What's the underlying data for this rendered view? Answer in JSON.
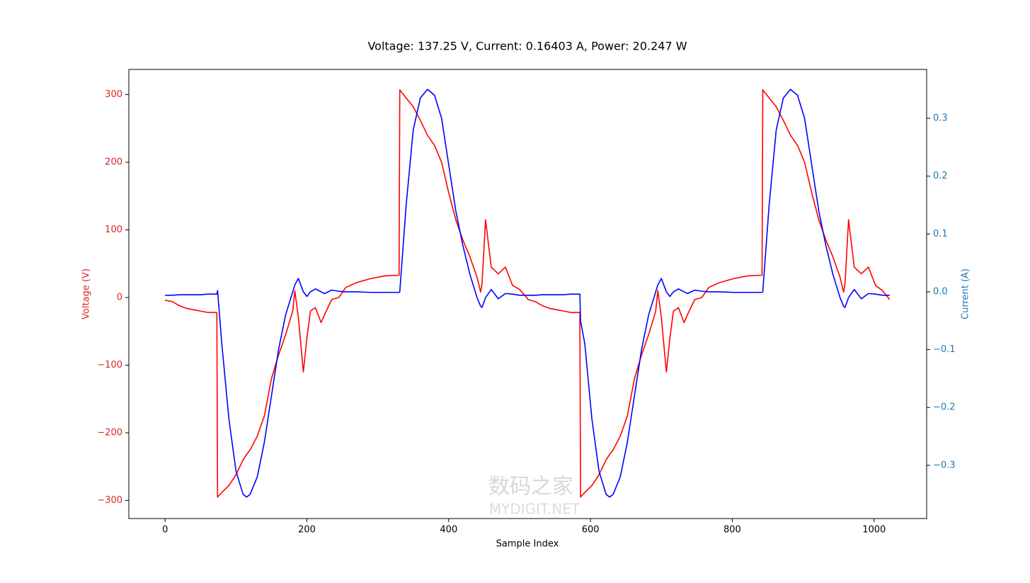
{
  "chart_data": {
    "type": "line",
    "title": "Voltage: 137.25 V, Current: 0.16403 A, Power: 20.247 W",
    "xlabel": "Sample Index",
    "ylabel": "Voltage (V)",
    "y2label": "Current (A)",
    "ylabel_color": "#d62728",
    "y2label_color": "#1f77b4",
    "watermark": [
      "数码之家",
      "MYDIGIT.NET"
    ],
    "x": [
      0,
      10,
      20,
      30,
      40,
      50,
      60,
      73,
      74,
      80,
      90,
      100,
      110,
      115,
      120,
      130,
      140,
      150,
      160,
      170,
      180,
      183,
      188,
      195,
      200,
      205,
      212,
      220,
      225,
      235,
      245,
      255,
      270,
      290,
      310,
      330,
      331,
      340,
      350,
      360,
      370,
      380,
      390,
      400,
      410,
      420,
      430,
      440,
      445,
      447,
      452,
      460,
      470,
      480,
      490,
      500,
      510,
      512,
      522,
      532,
      542,
      552,
      562,
      572,
      585,
      586,
      592,
      602,
      612,
      622,
      627,
      632,
      642,
      652,
      662,
      672,
      682,
      692,
      695,
      700,
      707,
      712,
      717,
      724,
      732,
      737,
      747,
      757,
      767,
      782,
      802,
      822,
      842,
      843,
      852,
      862,
      872,
      882,
      892,
      902,
      912,
      922,
      932,
      942,
      952,
      957,
      959,
      964,
      972,
      982,
      992,
      1002,
      1012,
      1022
    ],
    "series": [
      {
        "name": "Voltage (V)",
        "color": "#ff0000",
        "axis": "y",
        "values": [
          -4,
          -6,
          -12,
          -16,
          -18,
          -20,
          -22,
          -22,
          -295,
          -288,
          -278,
          -262,
          -240,
          -232,
          -225,
          -205,
          -175,
          -120,
          -85,
          -55,
          -20,
          10,
          -30,
          -110,
          -60,
          -20,
          -15,
          -37,
          -25,
          -3,
          0,
          15,
          22,
          28,
          32,
          33,
          307,
          295,
          282,
          262,
          240,
          225,
          200,
          155,
          115,
          85,
          60,
          30,
          8,
          20,
          115,
          45,
          35,
          45,
          18,
          12,
          0,
          -3,
          -6,
          -12,
          -16,
          -18,
          -20,
          -22,
          -22,
          -295,
          -288,
          -278,
          -262,
          -240,
          -232,
          -225,
          -205,
          -175,
          -120,
          -85,
          -55,
          -20,
          10,
          -30,
          -110,
          -60,
          -20,
          -15,
          -37,
          -25,
          -3,
          0,
          15,
          22,
          28,
          32,
          33,
          307,
          295,
          282,
          262,
          240,
          225,
          200,
          155,
          115,
          85,
          60,
          30,
          8,
          20,
          115,
          45,
          35,
          45,
          18,
          10,
          -3
        ]
      },
      {
        "name": "Current (A)",
        "color": "#0000ff",
        "axis": "y2",
        "values": [
          -0.006,
          -0.006,
          -0.005,
          -0.005,
          -0.005,
          -0.005,
          -0.004,
          -0.004,
          0.002,
          -0.09,
          -0.22,
          -0.31,
          -0.35,
          -0.355,
          -0.35,
          -0.32,
          -0.26,
          -0.18,
          -0.1,
          -0.04,
          0.0,
          0.012,
          0.023,
          0.0,
          -0.008,
          0.0,
          0.005,
          0.0,
          -0.003,
          0.003,
          0.001,
          0.0,
          0.0,
          -0.001,
          -0.001,
          -0.001,
          0.0,
          0.15,
          0.28,
          0.335,
          0.35,
          0.34,
          0.3,
          0.22,
          0.14,
          0.08,
          0.03,
          -0.01,
          -0.025,
          -0.027,
          -0.01,
          0.004,
          -0.012,
          -0.003,
          -0.004,
          -0.006,
          -0.006,
          -0.006,
          -0.006,
          -0.005,
          -0.005,
          -0.005,
          -0.005,
          -0.004,
          -0.004,
          -0.05,
          -0.09,
          -0.22,
          -0.31,
          -0.35,
          -0.355,
          -0.35,
          -0.32,
          -0.26,
          -0.18,
          -0.1,
          -0.04,
          0.0,
          0.012,
          0.023,
          0.0,
          -0.008,
          0.0,
          0.005,
          0.0,
          -0.003,
          0.003,
          0.001,
          0.0,
          0.0,
          -0.001,
          -0.001,
          -0.001,
          0.0,
          0.15,
          0.28,
          0.335,
          0.35,
          0.34,
          0.3,
          0.22,
          0.14,
          0.08,
          0.03,
          -0.01,
          -0.025,
          -0.027,
          -0.01,
          0.004,
          -0.012,
          -0.003,
          -0.004,
          -0.006,
          -0.006
        ]
      }
    ],
    "xlim": [
      -51.15,
      1074.15
    ],
    "xticks": [
      0,
      200,
      400,
      600,
      800,
      1000
    ],
    "ylim": [
      -326.7,
      337.2
    ],
    "yticks": [
      {
        "value": -300,
        "label": "−300"
      },
      {
        "value": -200,
        "label": "−200"
      },
      {
        "value": -100,
        "label": "−100"
      },
      0,
      100,
      200,
      300
    ],
    "y2lim": [
      -0.392,
      0.3845
    ],
    "y2ticks": [
      {
        "value": -0.3,
        "label": "−0.3"
      },
      {
        "value": -0.2,
        "label": "−0.2"
      },
      {
        "value": -0.1,
        "label": "−0.1"
      },
      {
        "value": 0,
        "label": "0.0"
      },
      0.1,
      0.2,
      0.3
    ],
    "grid": false
  }
}
